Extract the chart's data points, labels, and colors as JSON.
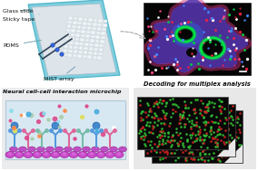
{
  "bg_color": "#f0f0f0",
  "panel_tl": {
    "label_glass": "Glass slide",
    "label_tape": "Sticky tape",
    "label_pdms": "PDMS",
    "label_mist": "MIST array",
    "chip_outer_color": "#7ecfdf",
    "chip_inner_color": "#d8dfe8",
    "chip_face_color": "#e8ecf0"
  },
  "panel_tr": {
    "label": "Decoding for multiplex analysis",
    "cell_purple": "#7744bb",
    "cell_blue": "#4455cc",
    "cell_pink": "#cc4488",
    "nucleus_green": "#00ee44",
    "bg": "#050505"
  },
  "panel_bl": {
    "label": "Neural cell-cell interaction microchip",
    "chamber_bg": "#dce8f0",
    "cell_purple": "#cc44cc",
    "cell_dark": "#aa22aa",
    "receptor_colors": [
      "#5599dd",
      "#cc6688",
      "#77bbaa",
      "#ddaa66",
      "#88bbdd"
    ],
    "dot_colors": [
      "#44aadd",
      "#dd4466",
      "#88ddee",
      "#aaddaa",
      "#dddd44",
      "#ffffff"
    ]
  },
  "panel_br": {
    "dot_green": "#33bb33",
    "dot_red": "#cc2222",
    "panel_bg": "#080808",
    "bg": "#e8e8e8"
  }
}
